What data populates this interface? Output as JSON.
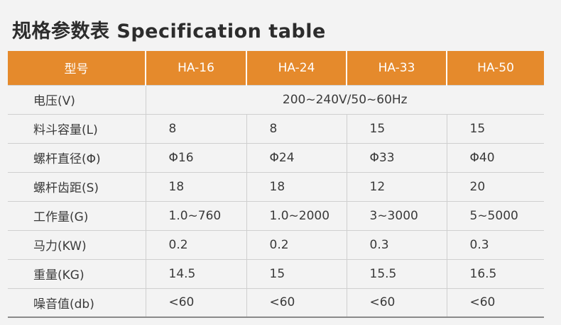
{
  "title": "规格参数表 Specification table",
  "colors": {
    "header_bg": "#e58a2c",
    "header_text": "#ffffff",
    "page_bg": "#f3f3f3"
  },
  "table": {
    "headers": [
      "型号",
      "HA-16",
      "HA-24",
      "HA-33",
      "HA-50"
    ],
    "voltage": {
      "label": "电压(V)",
      "value": "200~240V/50~60Hz"
    },
    "rows": [
      {
        "label": "料斗容量(L)",
        "values": [
          "8",
          "8",
          "15",
          "15"
        ]
      },
      {
        "label": "螺杆直径(Φ)",
        "values": [
          "Φ16",
          "Φ24",
          "Φ33",
          "Φ40"
        ]
      },
      {
        "label": "螺杆齿距(S)",
        "values": [
          "18",
          "18",
          "12",
          "20"
        ]
      },
      {
        "label": "工作量(G)",
        "values": [
          "1.0~760",
          "1.0~2000",
          "3~3000",
          "5~5000"
        ]
      },
      {
        "label": "马力(KW)",
        "values": [
          "0.2",
          "0.2",
          "0.3",
          "0.3"
        ]
      },
      {
        "label": "重量(KG)",
        "values": [
          "14.5",
          "15",
          "15.5",
          "16.5"
        ]
      },
      {
        "label": "噪音值(db)",
        "values": [
          "<60",
          "<60",
          "<60",
          "<60"
        ]
      }
    ]
  }
}
